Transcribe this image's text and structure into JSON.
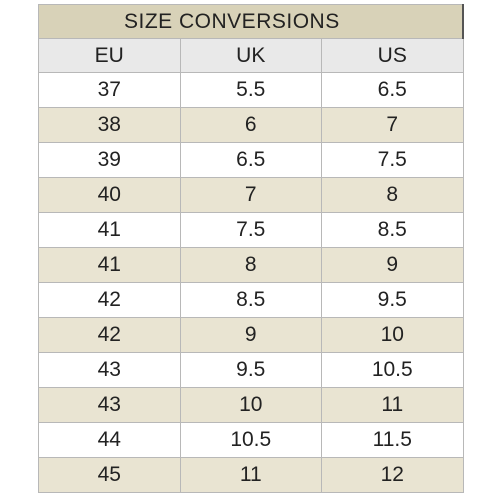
{
  "table": {
    "title": "SIZE CONVERSIONS",
    "columns": [
      "EU",
      "UK",
      "US"
    ],
    "rows": [
      [
        "37",
        "5.5",
        "6.5"
      ],
      [
        "38",
        "6",
        "7"
      ],
      [
        "39",
        "6.5",
        "7.5"
      ],
      [
        "40",
        "7",
        "8"
      ],
      [
        "41",
        "7.5",
        "8.5"
      ],
      [
        "41",
        "8",
        "9"
      ],
      [
        "42",
        "8.5",
        "9.5"
      ],
      [
        "42",
        "9",
        "10"
      ],
      [
        "43",
        "9.5",
        "10.5"
      ],
      [
        "43",
        "10",
        "11"
      ],
      [
        "44",
        "10.5",
        "11.5"
      ],
      [
        "45",
        "11",
        "12"
      ]
    ]
  },
  "colors": {
    "title_background": "#d8d2b8",
    "header_background": "#e9e9e9",
    "stripe_background": "#e9e4d2",
    "text": "#222222"
  }
}
